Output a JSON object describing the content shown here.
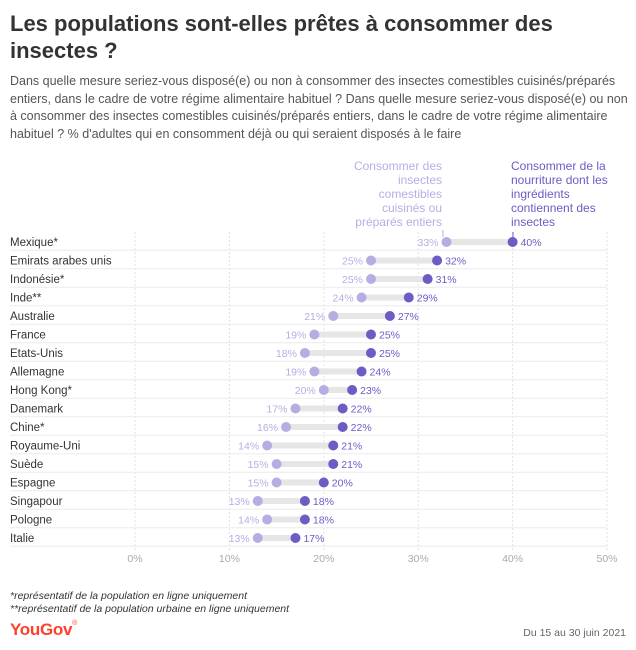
{
  "title": "Les populations sont-elles prêtes à consommer des insectes ?",
  "subtitle": "Dans quelle mesure seriez-vous disposé(e) ou non à consommer des insectes comestibles cuisinés/préparés entiers, dans le cadre de votre régime alimentaire habituel ? Dans quelle mesure seriez-vous disposé(e) ou non à consommer des insectes comestibles cuisinés/préparés entiers, dans le cadre de votre régime alimentaire habituel ? % d'adultes qui en consomment déjà ou qui seraient disposés à le faire",
  "footnotes": [
    "*représentatif de la population en ligne uniquement",
    "**représentatif de la population urbaine en ligne uniquement"
  ],
  "brand": {
    "name": "YouGov",
    "mark": "®"
  },
  "date": "Du 15 au 30 juin 2021",
  "colors": {
    "light": "#b5aee3",
    "dark": "#6c5cc4",
    "bar": "#e6e6e6",
    "brand": "#ff412c"
  },
  "chart_data": {
    "type": "dumbbell",
    "xlim": [
      0,
      50
    ],
    "x_ticks": [
      "0%",
      "10%",
      "20%",
      "30%",
      "40%",
      "50%"
    ],
    "grid": true,
    "categories": [
      "Mexique*",
      "Emirats arabes unis",
      "Indonésie*",
      "Inde**",
      "Australie",
      "France",
      "Etats-Unis",
      "Allemagne",
      "Hong Kong*",
      "Danemark",
      "Chine*",
      "Royaume-Uni",
      "Suède",
      "Espagne",
      "Singapour",
      "Pologne",
      "Italie"
    ],
    "series": [
      {
        "name": "Consommer des insectes comestibles cuisinés ou préparés entiers",
        "values": [
          33,
          25,
          25,
          24,
          21,
          19,
          18,
          19,
          20,
          17,
          16,
          14,
          15,
          15,
          13,
          14,
          13
        ]
      },
      {
        "name": "Consommer de la nourriture dont les ingrédients contiennent des insectes",
        "values": [
          40,
          32,
          31,
          29,
          27,
          25,
          25,
          24,
          23,
          22,
          22,
          21,
          21,
          20,
          18,
          18,
          17
        ]
      }
    ]
  }
}
